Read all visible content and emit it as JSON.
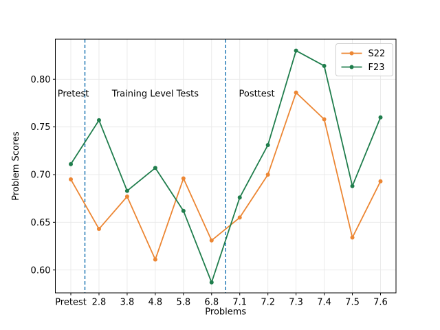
{
  "figure": {
    "background": "#ffffff"
  },
  "chart_data": {
    "type": "line",
    "title": "",
    "xlabel": "Problems",
    "ylabel": "Problem Scores",
    "categories": [
      "Pretest",
      "2.8",
      "3.8",
      "4.8",
      "5.8",
      "6.8",
      "7.1",
      "7.2",
      "7.3",
      "7.4",
      "7.5",
      "7.6"
    ],
    "series": [
      {
        "name": "S22",
        "color": "#ec8633",
        "marker": "circle",
        "values": [
          0.695,
          0.643,
          0.677,
          0.611,
          0.696,
          0.631,
          0.655,
          0.7,
          0.786,
          0.758,
          0.634,
          0.693
        ]
      },
      {
        "name": "F23",
        "color": "#1f7d4c",
        "marker": "circle",
        "values": [
          0.711,
          0.757,
          0.683,
          0.707,
          0.662,
          0.587,
          0.676,
          0.731,
          0.83,
          0.814,
          0.688,
          0.76
        ]
      }
    ],
    "ylim": [
      0.576,
      0.842
    ],
    "yticks": [
      0.6,
      0.65,
      0.7,
      0.75,
      0.8
    ],
    "ytick_labels": [
      "0.60",
      "0.65",
      "0.70",
      "0.75",
      "0.80"
    ],
    "grid": true,
    "grid_color": "#e8e8e8",
    "axis_color": "#000000",
    "legend": {
      "position": "upper right",
      "entries": [
        "S22",
        "F23"
      ]
    },
    "vlines": [
      {
        "x": 0.5,
        "style": "dashed",
        "color": "#1f77b4"
      },
      {
        "x": 5.5,
        "style": "dashed",
        "color": "#1f77b4"
      }
    ],
    "annotations": [
      {
        "text": "Pretest",
        "x": -0.47,
        "y": 0.785
      },
      {
        "text": "Training Level Tests",
        "x": 1.46,
        "y": 0.785
      },
      {
        "text": "Posttest",
        "x": 5.97,
        "y": 0.785
      }
    ]
  }
}
